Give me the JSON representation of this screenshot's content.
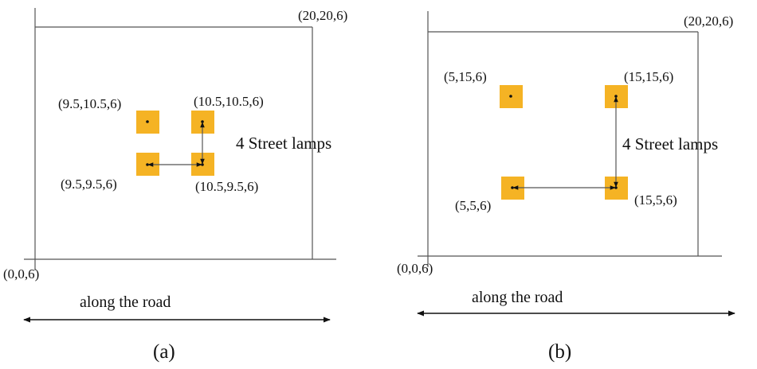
{
  "colors": {
    "lamp": "#f5b324",
    "line": "#555555",
    "text": "#111111",
    "arrow": "#111111"
  },
  "panels": [
    {
      "caption": "(a)",
      "origin_label": "(0,0,6)",
      "corner_label": "(20,20,6)",
      "lamps_label": "4 Street lamps",
      "road_label": "along the road",
      "lamps": [
        {
          "label": "(9.5,10.5,6)"
        },
        {
          "label": "(10.5,10.5,6)"
        },
        {
          "label": "(9.5,9.5,6)"
        },
        {
          "label": "(10.5,9.5,6)"
        }
      ]
    },
    {
      "caption": "(b)",
      "origin_label": "(0,0,6)",
      "corner_label": "(20,20,6)",
      "lamps_label": "4 Street lamps",
      "road_label": "along the road",
      "lamps": [
        {
          "label": "(5,15,6)"
        },
        {
          "label": "(15,15,6)"
        },
        {
          "label": "(5,5,6)"
        },
        {
          "label": "(15,5,6)"
        }
      ]
    }
  ]
}
